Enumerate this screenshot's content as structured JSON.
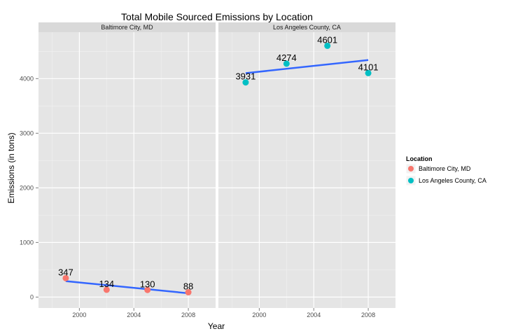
{
  "chart_data": {
    "type": "scatter",
    "title": "Total Mobile Sourced Emissions by Location",
    "xlabel": "Year",
    "ylabel": "Emissions (in tons)",
    "xlim": [
      1997,
      2010
    ],
    "ylim": [
      -200,
      4850
    ],
    "xticks": [
      "2000",
      "2004",
      "2008"
    ],
    "yticks": [
      "0",
      "1000",
      "2000",
      "3000",
      "4000"
    ],
    "grid": true,
    "facets": [
      "Baltimore City, MD",
      "Los Angeles County, CA"
    ],
    "legend": {
      "title": "Location",
      "placement": "right",
      "entries": [
        "Baltimore City, MD",
        "Los Angeles County, CA"
      ]
    },
    "series": [
      {
        "name": "Baltimore City, MD",
        "facet": 0,
        "color": "#F8766D",
        "x": [
          1999,
          2002,
          2005,
          2008
        ],
        "values": [
          347,
          134,
          130,
          88
        ],
        "labels": [
          "347",
          "134",
          "130",
          "88"
        ],
        "trend": [
          292,
          70
        ]
      },
      {
        "name": "Los Angeles County, CA",
        "facet": 1,
        "color": "#00BFC4",
        "x": [
          1999,
          2002,
          2005,
          2008
        ],
        "values": [
          3931,
          4274,
          4601,
          4101
        ],
        "labels": [
          "3931",
          "4274",
          "4601",
          "4101"
        ],
        "trend": [
          4100,
          4340
        ]
      }
    ],
    "trend_color": "#3366FF"
  }
}
